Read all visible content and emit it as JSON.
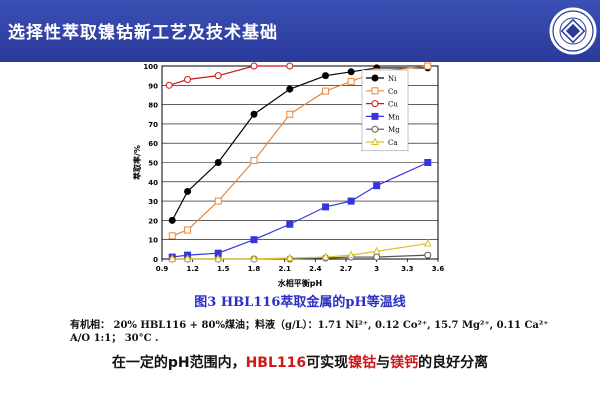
{
  "header": {
    "title": "选择性萃取镍钴新工艺及技术基础",
    "logo": "university-seal-logo"
  },
  "caption": "图3 HBL116萃取金属的pH等温线",
  "notes": {
    "line1": "有机相： 20% HBL116 + 80%煤油；料液（g/L）：1.71 Ni²⁺, 0.12 Co²⁺, 15.7 Mg²⁺, 0.11 Ca²⁺",
    "line2": "A/O 1:1； 30°C ."
  },
  "conclusion": {
    "p1": "在一定的pH范围内，",
    "p2": "HBL116",
    "p3": "可实现",
    "p4": "镍钴",
    "p5": "与",
    "p6": "镁钙",
    "p7": "的良好分离"
  },
  "colors": {
    "header": "#2f41a8",
    "caption": "#2b30c8",
    "highlight": "#d01818"
  },
  "chart_data": {
    "type": "line",
    "xlabel": "水相平衡pH",
    "ylabel": "萃取率/%",
    "xlim": [
      0.9,
      3.6
    ],
    "ylim": [
      0,
      100
    ],
    "xticks": [
      "0.9",
      "1.2",
      "1.5",
      "1.8",
      "2.1",
      "2.4",
      "2.7",
      "3",
      "3.3",
      "3.6"
    ],
    "yticks": [
      "0",
      "10",
      "20",
      "30",
      "40",
      "50",
      "60",
      "70",
      "80",
      "90",
      "100"
    ],
    "grid": "horizontal",
    "legend_position": "right",
    "series": [
      {
        "name": "Ni",
        "color": "#000000",
        "marker": "filled-circle",
        "x": [
          1.0,
          1.15,
          1.45,
          1.8,
          2.15,
          2.5,
          2.75,
          3.0,
          3.5
        ],
        "y": [
          20,
          35,
          50,
          75,
          88,
          95,
          97,
          99,
          99
        ]
      },
      {
        "name": "Co",
        "color": "#e8883c",
        "marker": "open-square",
        "x": [
          1.0,
          1.15,
          1.45,
          1.8,
          2.15,
          2.5,
          2.75,
          3.0,
          3.5
        ],
        "y": [
          12,
          15,
          30,
          51,
          75,
          87,
          92,
          97,
          100
        ]
      },
      {
        "name": "Cu",
        "color": "#c81818",
        "marker": "open-circle",
        "x": [
          0.97,
          1.15,
          1.45,
          1.8,
          2.15
        ],
        "y": [
          90,
          93,
          95,
          100,
          100
        ]
      },
      {
        "name": "Mn",
        "color": "#3535e0",
        "marker": "filled-square",
        "x": [
          1.0,
          1.15,
          1.45,
          1.8,
          2.15,
          2.5,
          2.75,
          3.0,
          3.5
        ],
        "y": [
          1,
          2,
          3,
          10,
          18,
          27,
          30,
          38,
          50
        ]
      },
      {
        "name": "Mg",
        "color": "#555555",
        "marker": "open-circle",
        "x": [
          1.0,
          1.15,
          1.45,
          1.8,
          2.15,
          2.5,
          2.75,
          3.0,
          3.5
        ],
        "y": [
          0,
          0,
          0,
          0,
          0,
          0.5,
          1,
          1,
          2
        ]
      },
      {
        "name": "Ca",
        "color": "#e0c020",
        "marker": "open-triangle",
        "x": [
          1.0,
          1.15,
          1.45,
          1.8,
          2.15,
          2.5,
          2.75,
          3.0,
          3.5
        ],
        "y": [
          0,
          0,
          0,
          0,
          0.5,
          1,
          2,
          4,
          8
        ]
      }
    ]
  }
}
